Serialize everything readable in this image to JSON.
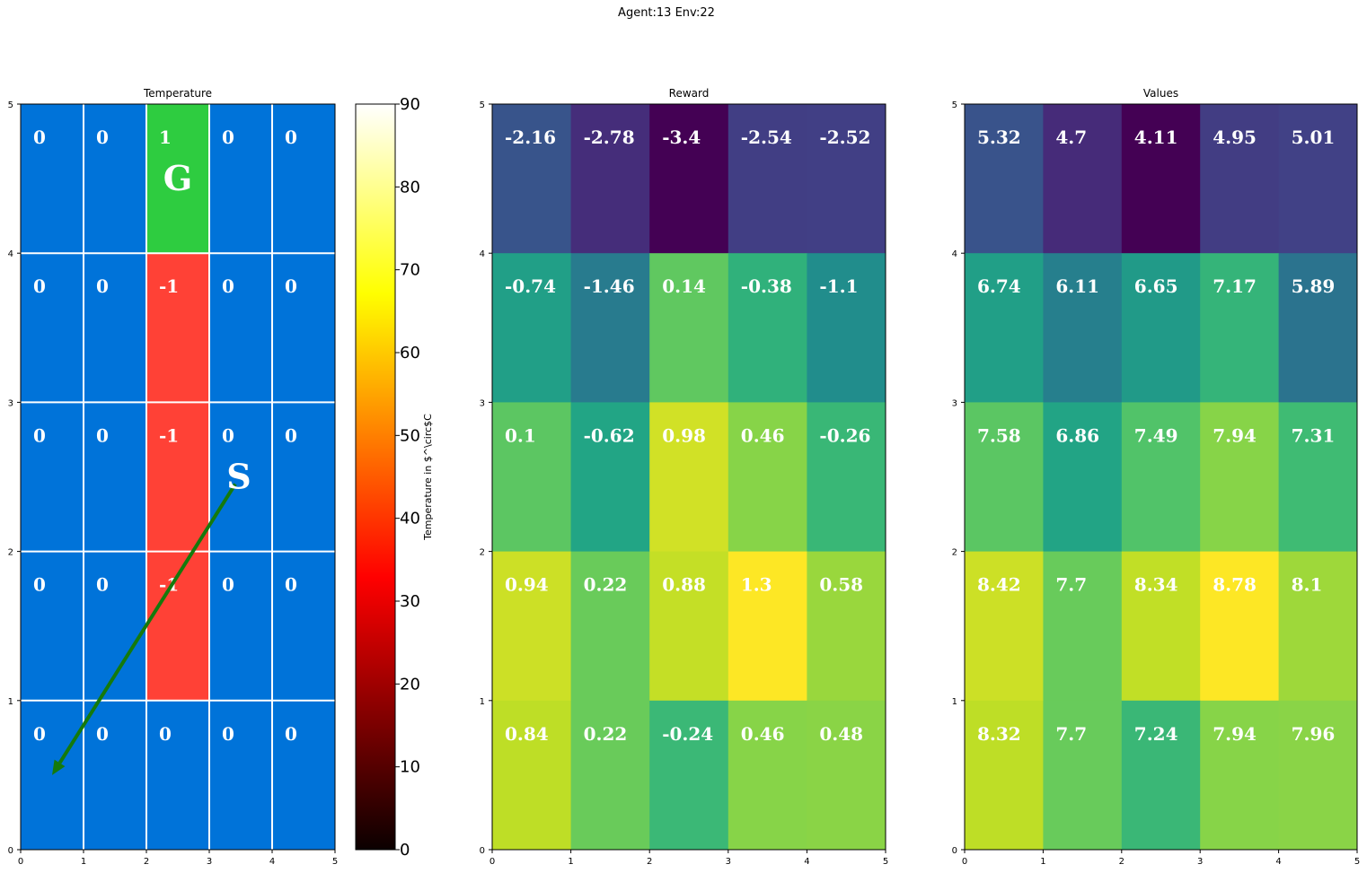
{
  "suptitle": "Agent:13 Env:22",
  "chart_data": [
    {
      "type": "heatmap",
      "title": "Temperature",
      "xlim": [
        0,
        5
      ],
      "ylim": [
        0,
        5
      ],
      "xticks": [
        "0",
        "1",
        "2",
        "3",
        "4",
        "5"
      ],
      "yticks": [
        "0",
        "1",
        "2",
        "3",
        "4",
        "5"
      ],
      "grid": true,
      "rows_top_to_bottom": [
        [
          0,
          0,
          1,
          0,
          0
        ],
        [
          0,
          0,
          -1,
          0,
          0
        ],
        [
          0,
          0,
          -1,
          0,
          0
        ],
        [
          0,
          0,
          -1,
          0,
          0
        ],
        [
          0,
          0,
          0,
          0,
          0
        ]
      ],
      "labels_top_to_bottom": [
        [
          "0",
          "0",
          "1",
          "0",
          "0"
        ],
        [
          "0",
          "0",
          "-1",
          "0",
          "0"
        ],
        [
          "0",
          "0",
          "-1",
          "0",
          "0"
        ],
        [
          "0",
          "0",
          "-1",
          "0",
          "0"
        ],
        [
          "0",
          "0",
          "0",
          "0",
          "0"
        ]
      ],
      "cell_colors": {
        "0": "#0073d9",
        "1": "#2ecc40",
        "-1": "#ff4136"
      },
      "grid_color": "#ffffff",
      "goal": {
        "label": "G",
        "x": 2.5,
        "y": 4.5
      },
      "start": {
        "label": "S",
        "x": 3.5,
        "y": 2.5
      },
      "arrow": {
        "from": [
          3.5,
          2.5
        ],
        "to": [
          0.5,
          0.5
        ],
        "color": "#157a0c"
      },
      "colorbar": {
        "label": "Temperature in $^\\circ$C",
        "range": [
          0,
          90
        ],
        "ticks": [
          "0",
          "10",
          "20",
          "30",
          "40",
          "50",
          "60",
          "70",
          "80",
          "90"
        ],
        "colormap": "hot"
      }
    },
    {
      "type": "heatmap",
      "title": "Reward",
      "xlim": [
        0,
        5
      ],
      "ylim": [
        0,
        5
      ],
      "xticks": [
        "0",
        "1",
        "2",
        "3",
        "4",
        "5"
      ],
      "yticks": [
        "0",
        "1",
        "2",
        "3",
        "4",
        "5"
      ],
      "colormap": "viridis",
      "rows_top_to_bottom": [
        [
          -2.16,
          -2.78,
          -3.4,
          -2.54,
          -2.52
        ],
        [
          -0.74,
          -1.46,
          0.14,
          -0.38,
          -1.1
        ],
        [
          0.1,
          -0.62,
          0.98,
          0.46,
          -0.26
        ],
        [
          0.94,
          0.22,
          0.88,
          1.3,
          0.58
        ],
        [
          0.84,
          0.22,
          -0.24,
          0.46,
          0.48
        ]
      ],
      "labels_top_to_bottom": [
        [
          "-2.16",
          "-2.78",
          "-3.4",
          "-2.54",
          "-2.52"
        ],
        [
          "-0.74",
          "-1.46",
          "0.14",
          "-0.38",
          "-1.1"
        ],
        [
          "0.1",
          "-0.62",
          "0.98",
          "0.46",
          "-0.26"
        ],
        [
          "0.94",
          "0.22",
          "0.88",
          "1.3",
          "0.58"
        ],
        [
          "0.84",
          "0.22",
          "-0.24",
          "0.46",
          "0.48"
        ]
      ]
    },
    {
      "type": "heatmap",
      "title": "Values",
      "xlim": [
        0,
        5
      ],
      "ylim": [
        0,
        5
      ],
      "xticks": [
        "0",
        "1",
        "2",
        "3",
        "4",
        "5"
      ],
      "yticks": [
        "0",
        "1",
        "2",
        "3",
        "4",
        "5"
      ],
      "colormap": "viridis",
      "rows_top_to_bottom": [
        [
          5.32,
          4.7,
          4.11,
          4.95,
          5.01
        ],
        [
          6.74,
          6.11,
          6.65,
          7.17,
          5.89
        ],
        [
          7.58,
          6.86,
          7.49,
          7.94,
          7.31
        ],
        [
          8.42,
          7.7,
          8.34,
          8.78,
          8.1
        ],
        [
          8.32,
          7.7,
          7.24,
          7.94,
          7.96
        ]
      ],
      "labels_top_to_bottom": [
        [
          "5.32",
          "4.7",
          "4.11",
          "4.95",
          "5.01"
        ],
        [
          "6.74",
          "6.11",
          "6.65",
          "7.17",
          "5.89"
        ],
        [
          "7.58",
          "6.86",
          "7.49",
          "7.94",
          "7.31"
        ],
        [
          "8.42",
          "7.7",
          "8.34",
          "8.78",
          "8.1"
        ],
        [
          "8.32",
          "7.7",
          "7.24",
          "7.94",
          "7.96"
        ]
      ]
    }
  ]
}
